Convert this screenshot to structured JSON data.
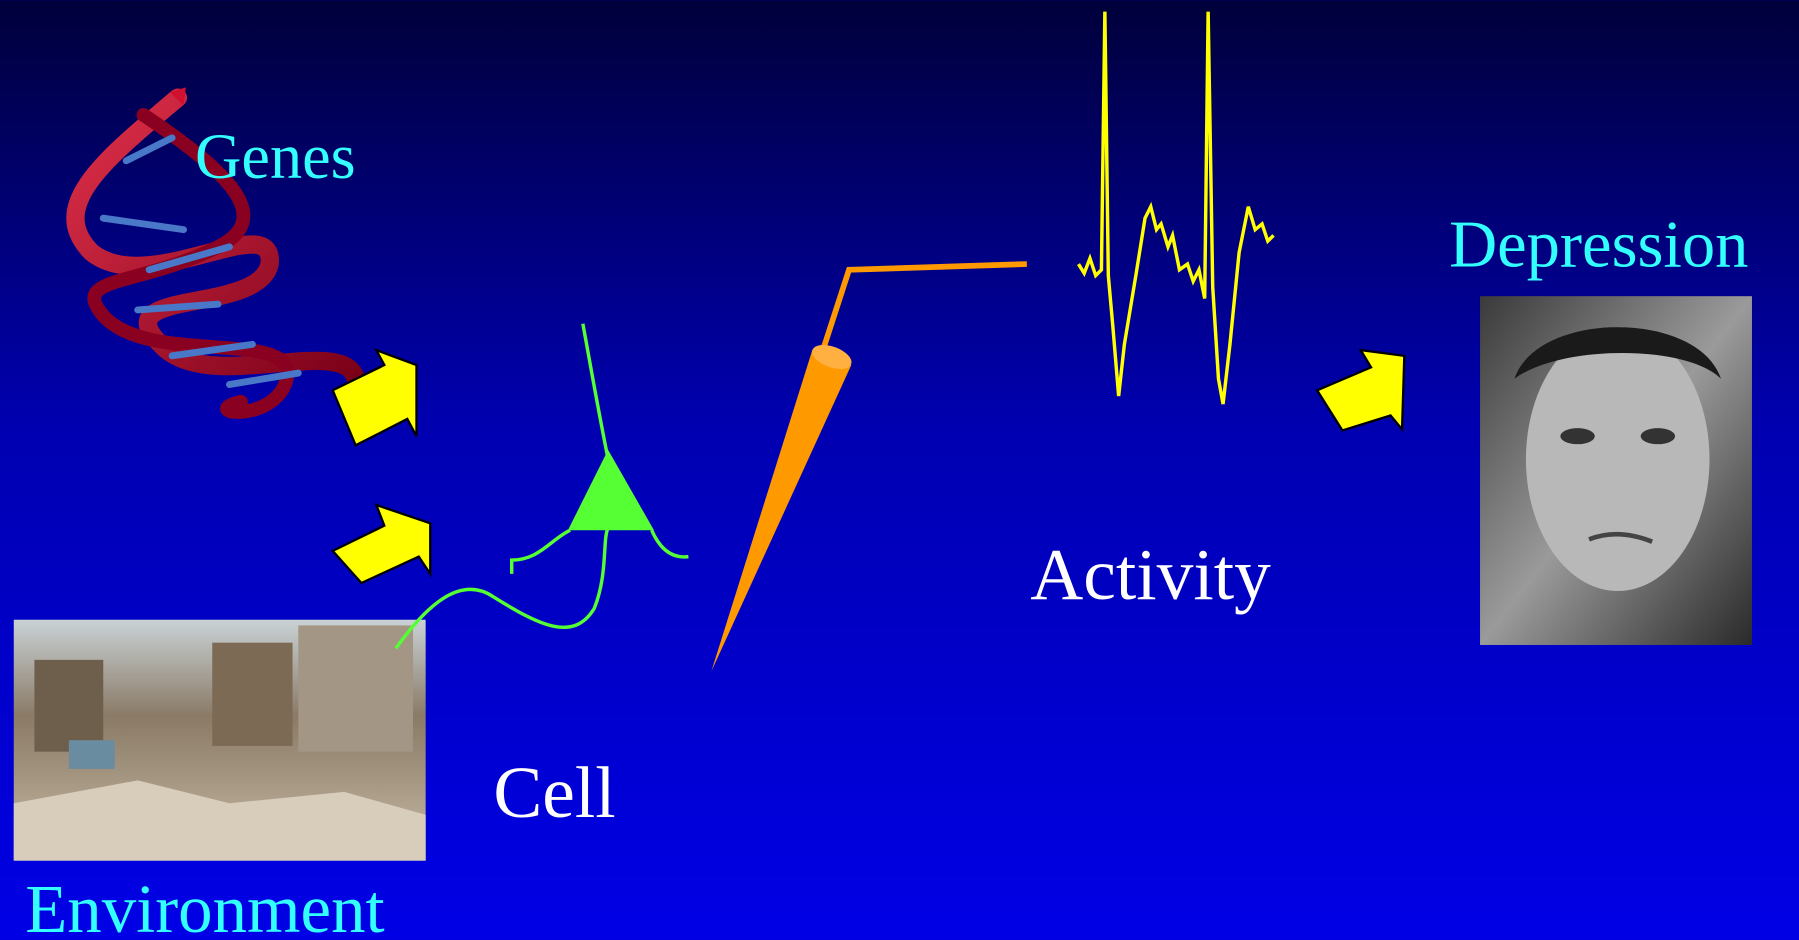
{
  "nodes": [
    {
      "label": "Genes"
    },
    {
      "label": "Environment"
    },
    {
      "label": "Cell"
    },
    {
      "label": "Activity"
    },
    {
      "label": "Depression"
    }
  ]
}
